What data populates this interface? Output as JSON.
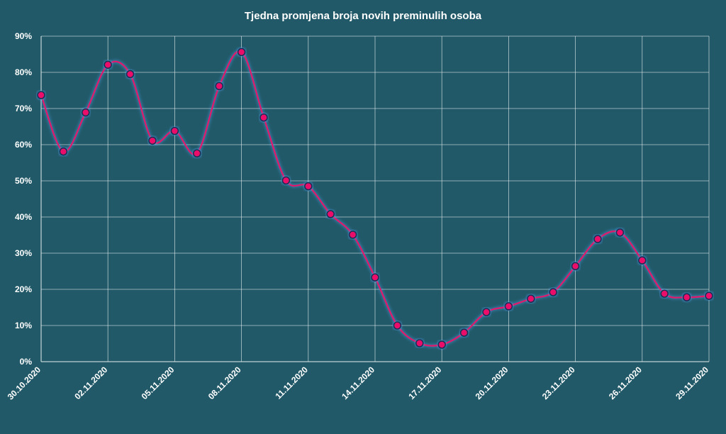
{
  "chart_data": {
    "type": "line",
    "title": "Tjedna promjena broja novih preminulih osoba",
    "xlabel": "",
    "ylabel": "",
    "ylim": [
      0,
      90
    ],
    "y_ticks": [
      "0%",
      "10%",
      "20%",
      "30%",
      "40%",
      "50%",
      "60%",
      "70%",
      "80%",
      "90%"
    ],
    "x_tick_labels": [
      "30.10.2020",
      "02.11.2020",
      "05.11.2020",
      "08.11.2020",
      "11.11.2020",
      "14.11.2020",
      "17.11.2020",
      "20.11.2020",
      "23.11.2020",
      "26.11.2020",
      "29.11.2020"
    ],
    "x": [
      "30.10.2020",
      "31.10.2020",
      "01.11.2020",
      "02.11.2020",
      "03.11.2020",
      "04.11.2020",
      "05.11.2020",
      "06.11.2020",
      "07.11.2020",
      "08.11.2020",
      "09.11.2020",
      "10.11.2020",
      "11.11.2020",
      "12.11.2020",
      "13.11.2020",
      "14.11.2020",
      "15.11.2020",
      "16.11.2020",
      "17.11.2020",
      "18.11.2020",
      "19.11.2020",
      "20.11.2020",
      "21.11.2020",
      "22.11.2020",
      "23.11.2020",
      "24.11.2020",
      "25.11.2020",
      "26.11.2020",
      "27.11.2020",
      "28.11.2020",
      "29.11.2020"
    ],
    "series": [
      {
        "values": [
          73.7,
          58.1,
          68.9,
          82.1,
          79.5,
          61.1,
          63.8,
          57.6,
          76.2,
          85.6,
          67.5,
          50.1,
          48.5,
          40.8,
          35.1,
          23.3,
          10.0,
          5.1,
          4.7,
          8.0,
          13.7,
          15.3,
          17.4,
          19.2,
          26.4,
          33.9,
          35.7,
          28.0,
          18.8,
          17.8,
          18.2
        ],
        "line_color": "#e0156b",
        "marker_color": "#ea0f6b"
      }
    ],
    "grid": true,
    "background": "#215968"
  }
}
